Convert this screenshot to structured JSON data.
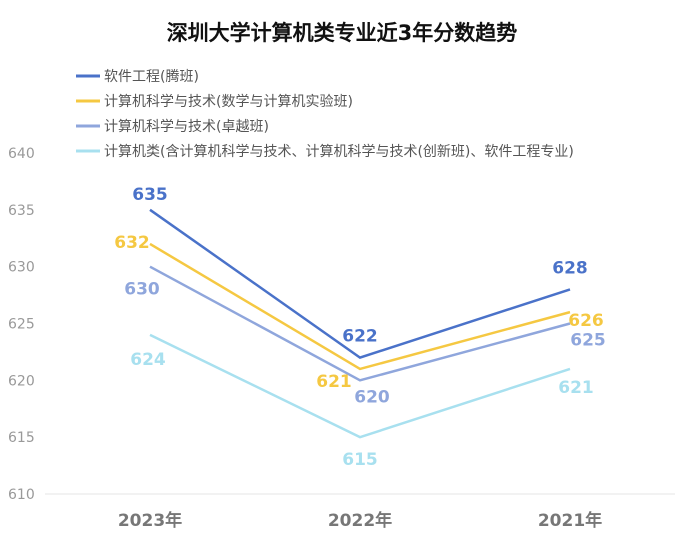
{
  "chart_data": {
    "type": "line",
    "title": "深圳大学计算机类专业近3年分数趋势",
    "categories": [
      "2023年",
      "2022年",
      "2021年"
    ],
    "ylim": [
      610,
      640
    ],
    "yticks": [
      610,
      615,
      620,
      625,
      630,
      635,
      640
    ],
    "grid": false,
    "legend_position": "top-left",
    "series": [
      {
        "name": "软件工程(腾班)",
        "values": [
          635,
          622,
          628
        ],
        "color": "#4a72c9"
      },
      {
        "name": "计算机科学与技术(数学与计算机实验班)",
        "values": [
          632,
          621,
          626
        ],
        "color": "#f5c842"
      },
      {
        "name": "计算机科学与技术(卓越班)",
        "values": [
          630,
          620,
          625
        ],
        "color": "#8fa6dc"
      },
      {
        "name": "计算机类(含计算机科学与技术、计算机科学与技术(创新班)、软件工程专业)",
        "values": [
          624,
          615,
          621
        ],
        "color": "#a8e0ef"
      }
    ]
  }
}
